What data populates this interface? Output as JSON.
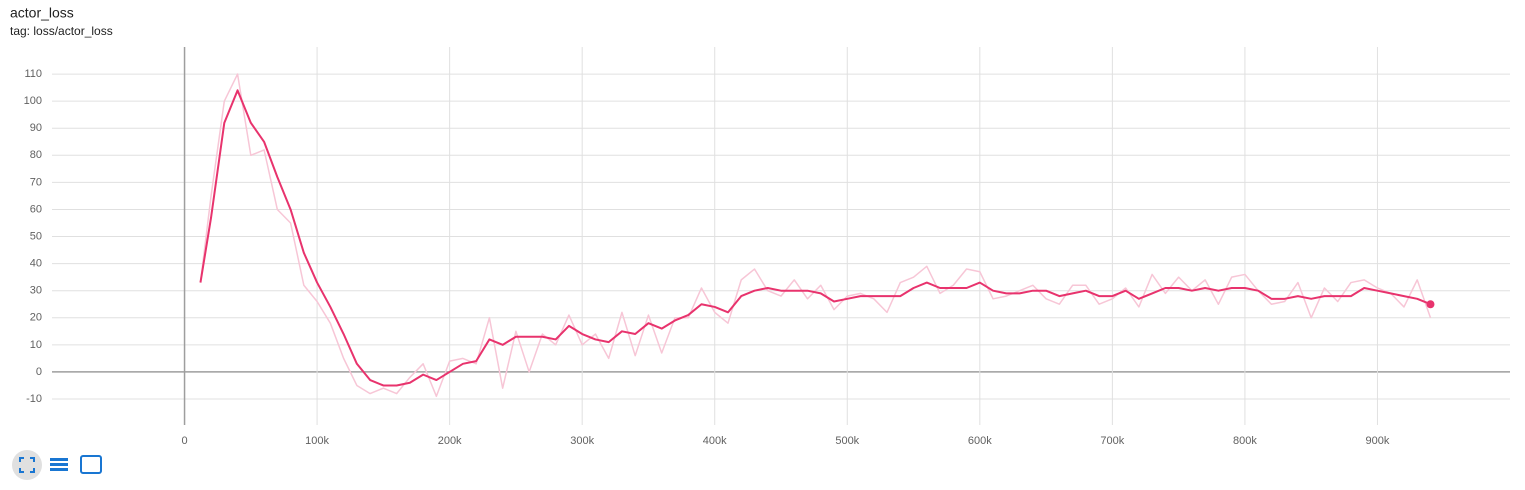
{
  "chart_data": {
    "type": "line",
    "title": "actor_loss",
    "subtitle": "tag: loss/actor_loss",
    "x": [
      12000,
      20000,
      30000,
      40000,
      50000,
      60000,
      70000,
      80000,
      90000,
      100000,
      110000,
      120000,
      130000,
      140000,
      150000,
      160000,
      170000,
      180000,
      190000,
      200000,
      210000,
      220000,
      230000,
      240000,
      250000,
      260000,
      270000,
      280000,
      290000,
      300000,
      310000,
      320000,
      330000,
      340000,
      350000,
      360000,
      370000,
      380000,
      390000,
      400000,
      410000,
      420000,
      430000,
      440000,
      450000,
      460000,
      470000,
      480000,
      490000,
      500000,
      510000,
      520000,
      530000,
      540000,
      550000,
      560000,
      570000,
      580000,
      590000,
      600000,
      610000,
      620000,
      630000,
      640000,
      650000,
      660000,
      670000,
      680000,
      690000,
      700000,
      710000,
      720000,
      730000,
      740000,
      750000,
      760000,
      770000,
      780000,
      790000,
      800000,
      810000,
      820000,
      830000,
      840000,
      850000,
      860000,
      870000,
      880000,
      890000,
      900000,
      910000,
      920000,
      930000,
      940000
    ],
    "series": [
      {
        "color": "#f7c6d6",
        "values": [
          33,
          65,
          100,
          110,
          80,
          82,
          60,
          55,
          32,
          26,
          18,
          5,
          -5,
          -8,
          -6,
          -8,
          -2,
          3,
          -9,
          4,
          5,
          3,
          20,
          -6,
          15,
          0,
          14,
          10,
          21,
          10,
          14,
          5,
          22,
          6,
          21,
          7,
          20,
          20,
          31,
          22,
          18,
          34,
          38,
          30,
          28,
          34,
          27,
          32,
          23,
          28,
          29,
          27,
          22,
          33,
          35,
          39,
          29,
          32,
          38,
          37,
          27,
          28,
          30,
          32,
          27,
          25,
          32,
          32,
          25,
          27,
          31,
          24,
          36,
          29,
          35,
          30,
          34,
          25,
          35,
          36,
          30,
          25,
          26,
          33,
          20,
          31,
          26,
          33,
          34,
          31,
          29,
          24,
          34,
          20
        ]
      },
      {
        "color": "#e8336d",
        "values": [
          33,
          57,
          92,
          104,
          92,
          85,
          72,
          60,
          44,
          33,
          24,
          14,
          3,
          -3,
          -5,
          -5,
          -4,
          -1,
          -3,
          0,
          3,
          4,
          12,
          10,
          13,
          13,
          13,
          12,
          17,
          14,
          12,
          11,
          15,
          14,
          18,
          16,
          19,
          21,
          25,
          24,
          22,
          28,
          30,
          31,
          30,
          30,
          30,
          29,
          26,
          27,
          28,
          28,
          28,
          28,
          31,
          33,
          31,
          31,
          31,
          33,
          30,
          29,
          29,
          30,
          30,
          28,
          29,
          30,
          28,
          28,
          30,
          27,
          29,
          31,
          31,
          30,
          31,
          30,
          31,
          31,
          30,
          27,
          27,
          28,
          27,
          28,
          28,
          28,
          31,
          30,
          29,
          28,
          27,
          25
        ]
      }
    ],
    "xlim": [
      -100000,
      1000000
    ],
    "ylim": [
      -19.6,
      120
    ],
    "xticks": [
      {
        "value": 0,
        "label": "0"
      },
      {
        "value": 100000,
        "label": "100k"
      },
      {
        "value": 200000,
        "label": "200k"
      },
      {
        "value": 300000,
        "label": "300k"
      },
      {
        "value": 400000,
        "label": "400k"
      },
      {
        "value": 500000,
        "label": "500k"
      },
      {
        "value": 600000,
        "label": "600k"
      },
      {
        "value": 700000,
        "label": "700k"
      },
      {
        "value": 800000,
        "label": "800k"
      },
      {
        "value": 900000,
        "label": "900k"
      }
    ],
    "yticks": [
      -10,
      0,
      10,
      20,
      30,
      40,
      50,
      60,
      70,
      80,
      90,
      100,
      110
    ],
    "grid": true
  }
}
